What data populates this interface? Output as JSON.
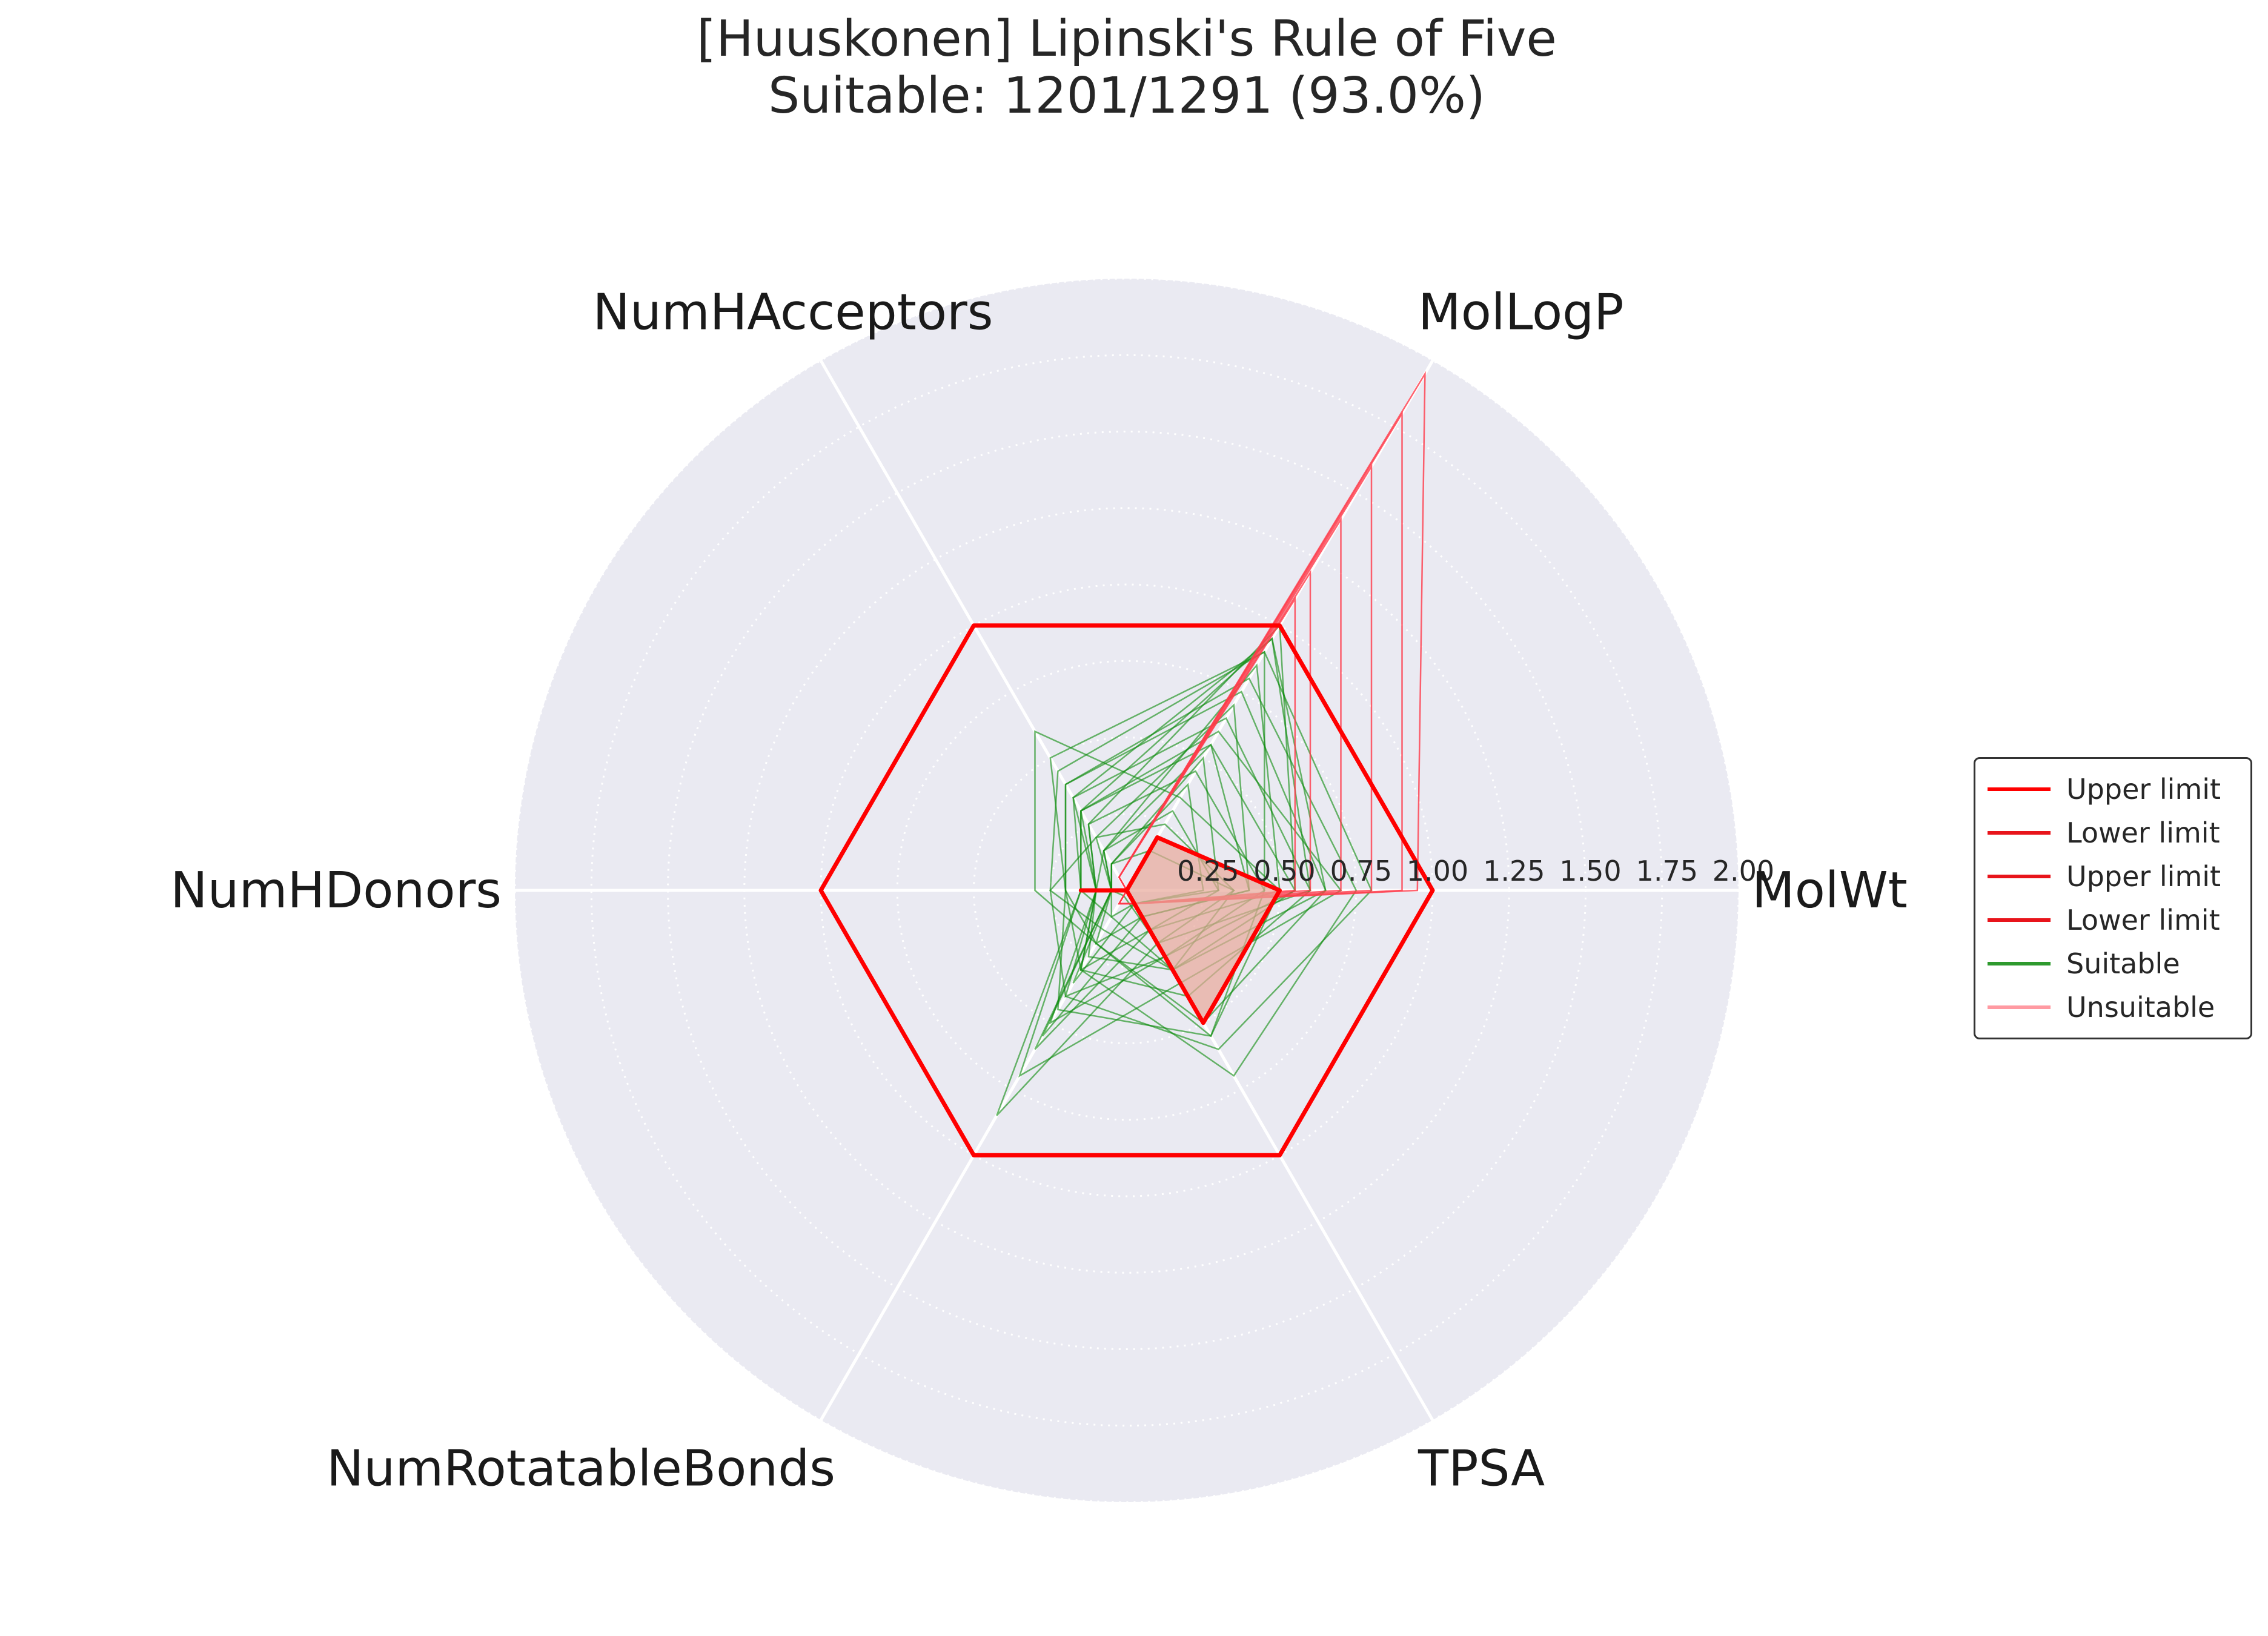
{
  "chart_data": {
    "type": "radar",
    "title": "[Huuskonen] Lipinski's Rule of Five",
    "subtitle": "Suitable: 1201/1291 (93.0%)",
    "axes": [
      "MolWt",
      "MolLogP",
      "NumHAcceptors",
      "NumHDonors",
      "NumRotatableBonds",
      "TPSA"
    ],
    "radial_ticks": [
      "0.25",
      "0.50",
      "0.75",
      "1.00",
      "1.25",
      "1.50",
      "1.75",
      "2.00"
    ],
    "radial_tick_values": [
      0.25,
      0.5,
      0.75,
      1.0,
      1.25,
      1.5,
      1.75,
      2.0
    ],
    "rlim": [
      0,
      2.0
    ],
    "grid": true,
    "legend_position": "right",
    "limits": {
      "upper": [
        1,
        1,
        1,
        1,
        1,
        1
      ],
      "lower": [
        0.5,
        0.2,
        0.0,
        0.15,
        0.0,
        0.5
      ]
    },
    "suitable_samples": [
      [
        0.35,
        0.15,
        0.1,
        0.05,
        0.02,
        0.2
      ],
      [
        0.45,
        0.45,
        0.25,
        0.1,
        0.4,
        0.25
      ],
      [
        0.3,
        0.3,
        0.15,
        0.1,
        0.3,
        0.15
      ],
      [
        0.55,
        0.55,
        0.3,
        0.15,
        0.1,
        0.3
      ],
      [
        0.4,
        0.7,
        0.2,
        0.05,
        0.2,
        0.1
      ],
      [
        0.5,
        0.85,
        0.15,
        0.05,
        0.6,
        0.15
      ],
      [
        0.6,
        0.95,
        0.35,
        0.1,
        0.3,
        0.4
      ],
      [
        0.65,
        0.75,
        0.4,
        0.2,
        0.2,
        0.5
      ],
      [
        0.25,
        0.4,
        0.1,
        0.05,
        0.1,
        0.05
      ],
      [
        0.45,
        0.9,
        0.5,
        0.2,
        0.45,
        0.55
      ],
      [
        0.7,
        0.6,
        0.3,
        0.15,
        0.7,
        0.35
      ],
      [
        0.55,
        1.0,
        0.25,
        0.1,
        0.5,
        0.25
      ],
      [
        0.8,
        0.9,
        0.45,
        0.25,
        0.4,
        0.6
      ],
      [
        0.35,
        0.25,
        0.2,
        0.25,
        0.15,
        0.3
      ],
      [
        0.6,
        0.65,
        0.35,
        0.15,
        0.85,
        0.2
      ],
      [
        0.75,
        0.8,
        0.4,
        0.2,
        0.3,
        0.7
      ],
      [
        0.5,
        0.35,
        0.6,
        0.3,
        0.2,
        0.55
      ],
      [
        0.4,
        0.55,
        0.15,
        0.05,
        0.55,
        0.1
      ],
      [
        0.65,
        0.95,
        0.3,
        0.1,
        0.25,
        0.3
      ],
      [
        0.3,
        0.5,
        0.1,
        0.05,
        0.35,
        0.05
      ]
    ],
    "unsuitable_samples": [
      [
        0.6,
        1.2,
        0.05,
        0.0,
        0.05,
        0.05
      ],
      [
        0.7,
        1.4,
        0.05,
        0.0,
        0.05,
        0.05
      ],
      [
        0.8,
        1.6,
        0.05,
        0.0,
        0.05,
        0.05
      ],
      [
        0.95,
        1.95,
        0.05,
        0.0,
        0.05,
        0.05
      ],
      [
        0.9,
        1.8,
        0.05,
        0.0,
        0.05,
        0.05
      ],
      [
        0.55,
        1.1,
        0.05,
        0.0,
        0.05,
        0.05
      ]
    ]
  },
  "legend": {
    "items": [
      {
        "label": "Upper limit",
        "color": "#ff0000"
      },
      {
        "label": "Lower limit",
        "color": "#e8141b"
      },
      {
        "label": "Upper limit",
        "color": "#e8141b"
      },
      {
        "label": "Lower limit",
        "color": "#e8141b"
      },
      {
        "label": "Suitable",
        "color": "#2e9a2e"
      },
      {
        "label": "Unsuitable",
        "color": "#ff9aa2"
      }
    ]
  },
  "colors": {
    "background": "#eaeaf2",
    "grid": "#ffffff",
    "limit": "#ff0000",
    "lower_fill": "#e8a89a",
    "suitable": "#0a8a0a",
    "unsuitable": "#ff3b4a"
  }
}
